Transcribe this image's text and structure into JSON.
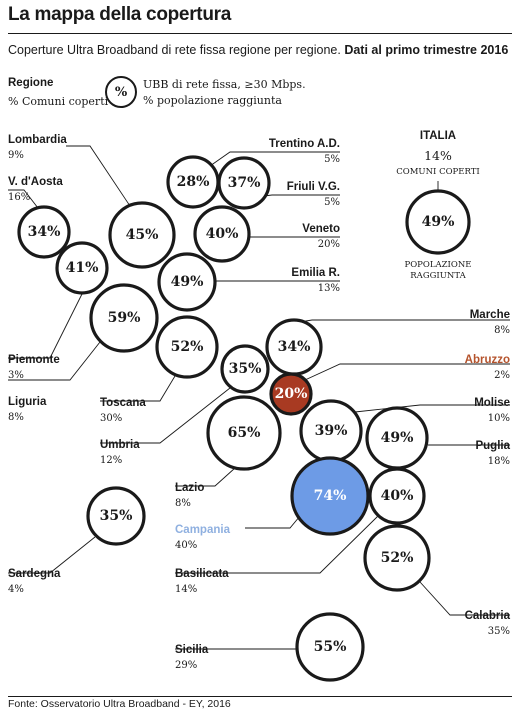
{
  "header": {
    "title": "La mappa della copertura",
    "subtitle": "Coperture Ultra Broadband di rete fissa regione per regione.",
    "subtitle_bold": "Dati al primo trimestre 2016"
  },
  "legend": {
    "region_label": "Regione",
    "coverage_label": "% Comuni coperti",
    "circle_symbol": "%",
    "ubb_label": "UBB di rete fissa, ≥30 Mbps.",
    "population_label": "% popolazione raggiunta"
  },
  "italia": {
    "title": "ITALIA",
    "comuni_value": "14%",
    "comuni_label": "COMUNI COPERTI",
    "population_value": "49%",
    "population_label_1": "POPOLAZIONE",
    "population_label_2": "RAGGIUNTA"
  },
  "colors": {
    "default": "#ffffff",
    "abruzzo": "#a83a22",
    "campania": "#6d9be6",
    "abruzzo_text": "#b5532c",
    "campania_text": "#8fb0e0"
  },
  "regions": [
    {
      "name": "Lombardia",
      "comuni": "9%",
      "popolazione": "45%"
    },
    {
      "name": "V. d'Aosta",
      "comuni": "16%",
      "popolazione": "34%"
    },
    {
      "name": "Trentino A.D.",
      "comuni": "5%",
      "popolazione": "28%"
    },
    {
      "name": "Friuli V.G.",
      "comuni": "5%",
      "popolazione": "37%"
    },
    {
      "name": "Veneto",
      "comuni": "20%",
      "popolazione": "40%"
    },
    {
      "name": "Emilia R.",
      "comuni": "13%",
      "popolazione": "49%"
    },
    {
      "name": "Piemonte",
      "comuni": "3%",
      "popolazione": "41%"
    },
    {
      "name": "Liguria",
      "comuni": "8%",
      "popolazione": "59%"
    },
    {
      "name": "Toscana",
      "comuni": "30%",
      "popolazione": "52%"
    },
    {
      "name": "Marche",
      "comuni": "8%",
      "popolazione": "34%"
    },
    {
      "name": "Umbria",
      "comuni": "12%",
      "popolazione": "35%"
    },
    {
      "name": "Abruzzo",
      "comuni": "2%",
      "popolazione": "20%"
    },
    {
      "name": "Lazio",
      "comuni": "8%",
      "popolazione": "65%"
    },
    {
      "name": "Molise",
      "comuni": "10%",
      "popolazione": "39%"
    },
    {
      "name": "Puglia",
      "comuni": "18%",
      "popolazione": "49%"
    },
    {
      "name": "Campania",
      "comuni": "40%",
      "popolazione": "74%"
    },
    {
      "name": "Basilicata",
      "comuni": "14%",
      "popolazione": "40%"
    },
    {
      "name": "Calabria",
      "comuni": "35%",
      "popolazione": "52%"
    },
    {
      "name": "Sardegna",
      "comuni": "4%",
      "popolazione": "35%"
    },
    {
      "name": "Sicilia",
      "comuni": "29%",
      "popolazione": "55%"
    }
  ],
  "footer": {
    "source": "Fonte: Osservatorio Ultra Broadband - EY, 2016"
  }
}
